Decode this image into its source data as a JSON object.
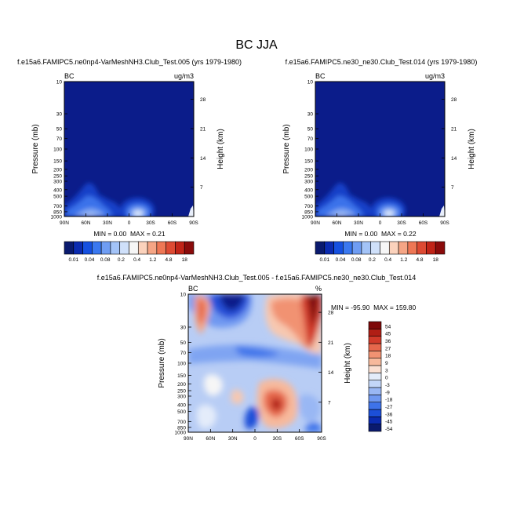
{
  "main_title": "BC JJA",
  "chart_data": [
    {
      "type": "heatmap",
      "title": "f.e15a6.FAMIPC5.ne0np4-VarMeshNH3.Club_Test.005 (yrs 1979-1980)",
      "left_label": "BC",
      "right_label": "ug/m3",
      "ylabel": "Pressure (mb)",
      "ylabel_right": "Height (km)",
      "x_ticks": [
        "90N",
        "60N",
        "30N",
        "0",
        "30S",
        "60S",
        "90S"
      ],
      "y_ticks": [
        "10",
        "30",
        "50",
        "70",
        "100",
        "150",
        "200",
        "250",
        "300",
        "400",
        "500",
        "700",
        "850",
        "1000"
      ],
      "height_ticks": [
        "28",
        "21",
        "14",
        "7"
      ],
      "stats": {
        "min": "0.00",
        "max": "0.21"
      },
      "stats_text": {
        "min_label": "MIN =",
        "max_label": "MAX ="
      }
    },
    {
      "type": "heatmap",
      "title": "f.e15a6.FAMIPC5.ne30_ne30.Club_Test.014 (yrs 1979-1980)",
      "left_label": "BC",
      "right_label": "ug/m3",
      "ylabel": "Pressure (mb)",
      "ylabel_right": "Height (km)",
      "x_ticks": [
        "90N",
        "60N",
        "30N",
        "0",
        "30S",
        "60S",
        "90S"
      ],
      "y_ticks": [
        "10",
        "30",
        "50",
        "70",
        "100",
        "150",
        "200",
        "250",
        "300",
        "400",
        "500",
        "700",
        "850",
        "1000"
      ],
      "height_ticks": [
        "28",
        "21",
        "14",
        "7"
      ],
      "stats": {
        "min": "0.00",
        "max": "0.22"
      },
      "stats_text": {
        "min_label": "MIN =",
        "max_label": "MAX ="
      }
    },
    {
      "type": "heatmap",
      "title": "f.e15a6.FAMIPC5.ne0np4-VarMeshNH3.Club_Test.005 - f.e15a6.FAMIPC5.ne30_ne30.Club_Test.014",
      "left_label": "BC",
      "right_label": "%",
      "ylabel": "Pressure (mb)",
      "ylabel_right": "Height (km)",
      "x_ticks": [
        "90N",
        "60N",
        "30N",
        "0",
        "30S",
        "60S",
        "90S"
      ],
      "y_ticks": [
        "10",
        "30",
        "50",
        "70",
        "100",
        "150",
        "200",
        "250",
        "300",
        "400",
        "500",
        "700",
        "850",
        "1000"
      ],
      "height_ticks": [
        "28",
        "21",
        "14",
        "7"
      ],
      "stats": {
        "min": "-95.90",
        "max": "159.80"
      },
      "stats_text": {
        "min_label": "MIN =",
        "max_label": "MAX ="
      }
    }
  ],
  "colorbar_top": {
    "colors": [
      "#0a1a6e",
      "#0b2bb0",
      "#1550e0",
      "#3a78f0",
      "#6f9df3",
      "#a3c3f7",
      "#cfe0fa",
      "#f6f6f6",
      "#fbd2bc",
      "#f5a585",
      "#ee7755",
      "#dd4a33",
      "#c02418",
      "#8a0b0b"
    ],
    "labels": [
      "0.01",
      "0.04",
      "0.08",
      "0.2",
      "0.4",
      "1.2",
      "4.8",
      "18"
    ]
  },
  "colorbar_diff": {
    "colors": [
      "#0a1a6e",
      "#0b2bb0",
      "#1c4fd8",
      "#3e73ea",
      "#6f98f1",
      "#99b7f4",
      "#c3d6f8",
      "#e4ecfa",
      "#fbe0d2",
      "#f7b99c",
      "#f19272",
      "#e6674c",
      "#d13a2a",
      "#b01e15",
      "#7e0808"
    ],
    "labels": [
      "54",
      "45",
      "36",
      "27",
      "18",
      "9",
      "3",
      "0",
      "-3",
      "-9",
      "-18",
      "-27",
      "-36",
      "-45",
      "-54"
    ]
  }
}
